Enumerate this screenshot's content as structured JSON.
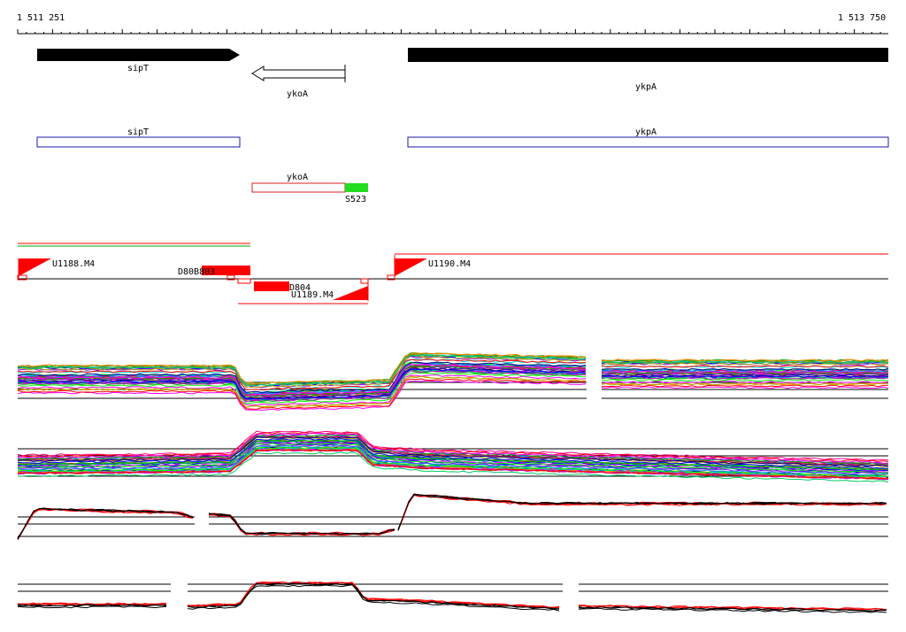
{
  "coordinates": {
    "start": "1 511 251",
    "end": "1 513 750"
  },
  "genes": [
    {
      "name": "sipT",
      "strand": "+"
    },
    {
      "name": "ykoA",
      "strand": "-"
    },
    {
      "name": "ykpA",
      "strand": "+"
    }
  ],
  "cds_boxes": [
    {
      "name": "sipT"
    },
    {
      "name": "ykpA"
    },
    {
      "name": "ykoA"
    }
  ],
  "element_label": "S523",
  "transcripts": [
    {
      "name": "U1188.M4"
    },
    {
      "name": "D80B803"
    },
    {
      "name": "D804"
    },
    {
      "name": "U1189.M4"
    },
    {
      "name": "U1190.M4"
    }
  ],
  "colors": {
    "gene_fill": "#000000",
    "cds_plus": "#1a1aa8",
    "cds_minus": "#d42020",
    "element": "#22dd22",
    "transcript": "#ff0000",
    "profile_palette": [
      "#ff0000",
      "#00aa00",
      "#0000ff",
      "#ff00ff",
      "#00cccc",
      "#ff8800",
      "#8800ff",
      "#888800",
      "#00ff00",
      "#ff0088",
      "#0088ff",
      "#884400",
      "#aaaa00",
      "#000088",
      "#cc00cc",
      "#00cc66"
    ]
  }
}
